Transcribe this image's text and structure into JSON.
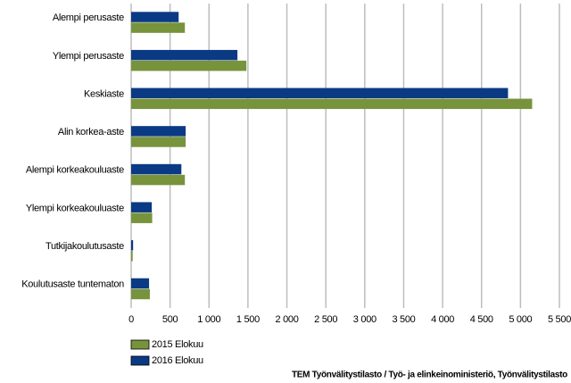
{
  "chart_data": {
    "type": "hbar",
    "categories": [
      "Alempi perusaste",
      "Ylempi perusaste",
      "Keskiaste",
      "Alin korkea-aste",
      "Alempi korkeakouluaste",
      "Ylempi korkeakouluaste",
      "Tutkijakoulutusaste",
      "Koulutusaste tuntematon"
    ],
    "series": [
      {
        "name": "2015 Elokuu",
        "color": "#77933c",
        "values": [
          690,
          1480,
          5150,
          700,
          690,
          270,
          20,
          240
        ]
      },
      {
        "name": "2016 Elokuu",
        "color": "#0b3a84",
        "values": [
          610,
          1365,
          4840,
          700,
          645,
          265,
          25,
          230
        ]
      }
    ],
    "xlim": [
      0,
      5500
    ],
    "xticks": [
      0,
      500,
      {
        "value": 1000,
        "label": "1 000"
      },
      {
        "value": 1500,
        "label": "1 500"
      },
      {
        "value": 2000,
        "label": "2 000"
      },
      {
        "value": 2500,
        "label": "2 500"
      },
      {
        "value": 3000,
        "label": "3 000"
      },
      {
        "value": 3500,
        "label": "3 500"
      },
      {
        "value": 4000,
        "label": "4 000"
      },
      {
        "value": 4500,
        "label": "4 500"
      },
      {
        "value": 5000,
        "label": "5 000"
      },
      {
        "value": 5500,
        "label": "5 500"
      }
    ],
    "grid": true,
    "legend": "bottom-left",
    "source": "TEM Työnvälitystilasto / Työ- ja elinkeinoministeriö, Työnvälitystilasto"
  }
}
